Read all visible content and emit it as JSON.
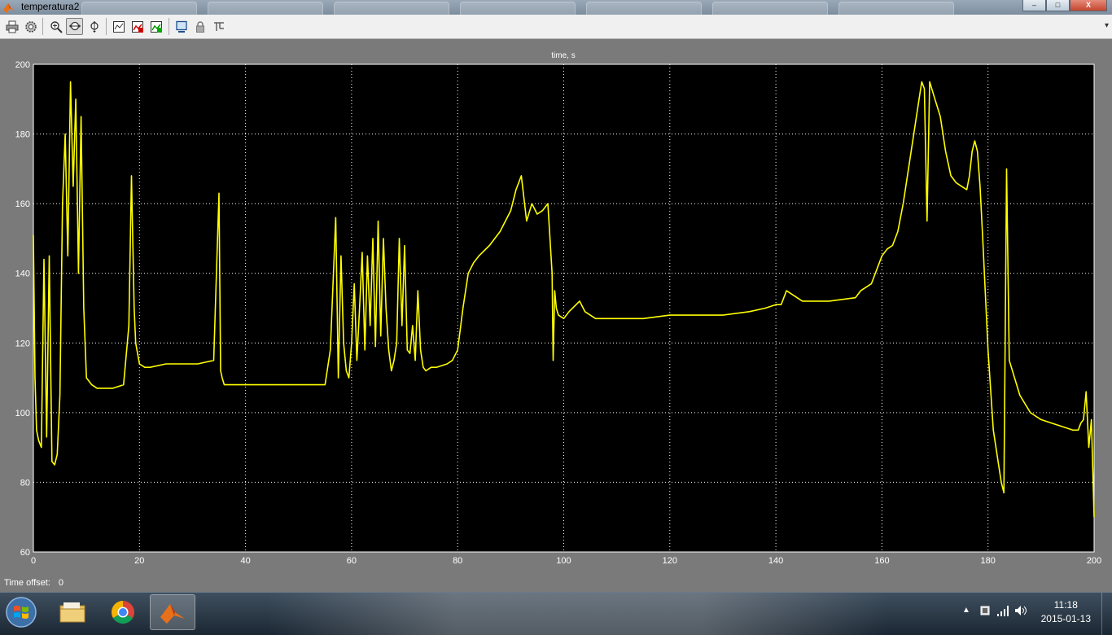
{
  "window": {
    "title": "temperatura2",
    "controls": [
      "–",
      "□",
      "X"
    ]
  },
  "toolbar": {
    "buttons": [
      {
        "name": "print-icon"
      },
      {
        "name": "parameters-icon"
      },
      {
        "name": "zoom-in-icon"
      },
      {
        "name": "zoom-x-icon",
        "pressed": true
      },
      {
        "name": "zoom-y-icon"
      },
      {
        "name": "autoscale-icon"
      },
      {
        "name": "save-axes-settings-icon"
      },
      {
        "name": "restore-axes-settings-icon"
      },
      {
        "name": "floating-scope-icon"
      },
      {
        "name": "lock-axes-icon"
      },
      {
        "name": "signal-selection-icon"
      }
    ]
  },
  "chart_data": {
    "type": "line",
    "title": "time, s",
    "xlabel": "",
    "ylabel": "",
    "xlim": [
      0,
      200
    ],
    "ylim": [
      60,
      200
    ],
    "xticks": [
      "0",
      "20",
      "40",
      "60",
      "80",
      "100",
      "120",
      "140",
      "160",
      "180",
      "200"
    ],
    "yticks": [
      "60",
      "80",
      "100",
      "120",
      "140",
      "160",
      "180",
      "200"
    ],
    "grid": true,
    "background": "#000000",
    "line_color": "#ffff00",
    "series": [
      {
        "x": [
          0,
          0.3,
          0.6,
          1,
          1.5,
          2,
          2.5,
          3,
          3.5,
          4,
          4.5,
          5,
          5.5,
          6,
          6.5,
          7,
          7.5,
          8,
          8.5,
          9,
          9.5,
          10,
          11,
          12,
          13,
          15,
          17,
          18,
          18.5,
          19,
          19.3,
          20,
          21,
          22,
          25,
          28,
          31,
          34,
          35,
          35.3,
          35.6,
          36,
          38,
          40,
          45,
          50,
          55,
          56,
          57,
          57.5,
          58,
          58.5,
          59,
          59.5,
          60,
          60.5,
          61,
          61.5,
          62,
          62.5,
          63,
          63.5,
          64,
          64.5,
          65,
          65.5,
          66,
          66.5,
          67,
          67.5,
          68,
          68.5,
          69,
          69.5,
          70,
          70.5,
          71,
          71.5,
          72,
          72.5,
          73,
          73.5,
          74,
          75,
          76,
          78,
          79,
          80,
          81,
          82,
          83,
          84,
          86,
          88,
          90,
          91,
          92,
          93,
          94,
          95,
          96,
          97,
          97.8,
          98,
          98.3,
          98.6,
          99,
          100,
          101,
          103,
          104,
          106,
          110,
          115,
          120,
          125,
          130,
          135,
          138,
          140,
          141,
          142,
          145,
          150,
          155,
          155.5,
          156,
          158,
          160,
          161,
          162,
          163,
          164,
          165,
          166,
          167,
          167.5,
          168,
          168.5,
          169,
          170,
          171,
          172,
          173,
          174,
          175,
          176,
          176.5,
          177,
          177.5,
          178,
          178.5,
          179,
          180,
          181,
          182,
          182.5,
          183,
          183.5,
          184,
          186,
          188,
          190,
          192,
          194,
          196,
          197,
          197.5,
          198,
          198.5,
          199,
          199.5,
          200
        ],
        "y": [
          151,
          110,
          95,
          92,
          90,
          144,
          93,
          145,
          86,
          85,
          88,
          105,
          160,
          180,
          145,
          195,
          165,
          190,
          140,
          185,
          130,
          110,
          108,
          107,
          107,
          107,
          108,
          125,
          168,
          130,
          120,
          114,
          113,
          113,
          114,
          114,
          114,
          115,
          163,
          112,
          110,
          108,
          108,
          108,
          108,
          108,
          108,
          118,
          156,
          110,
          145,
          120,
          112,
          110,
          120,
          137,
          115,
          130,
          146,
          118,
          145,
          125,
          150,
          119,
          155,
          122,
          150,
          130,
          118,
          112,
          115,
          120,
          150,
          125,
          148,
          118,
          117,
          125,
          115,
          135,
          118,
          113,
          112,
          113,
          113,
          114,
          115,
          118,
          130,
          140,
          143,
          145,
          148,
          152,
          158,
          164,
          168,
          155,
          160,
          157,
          158,
          160,
          140,
          115,
          135,
          130,
          128,
          127,
          129,
          132,
          129,
          127,
          127,
          127,
          128,
          128,
          128,
          129,
          130,
          131,
          131,
          135,
          132,
          132,
          133,
          134,
          135,
          137,
          145,
          147,
          148,
          152,
          160,
          170,
          180,
          190,
          195,
          193,
          155,
          195,
          190,
          185,
          175,
          168,
          166,
          165,
          164,
          168,
          175,
          178,
          175,
          165,
          150,
          118,
          95,
          85,
          80,
          77,
          170,
          115,
          105,
          100,
          98,
          97,
          96,
          95,
          95,
          97,
          98,
          106,
          90,
          98,
          70
        ]
      }
    ]
  },
  "status": {
    "label": "Time offset:",
    "value": "0"
  },
  "taskbar": {
    "items": [
      {
        "name": "file-explorer-icon"
      },
      {
        "name": "chrome-icon"
      },
      {
        "name": "matlab-icon",
        "active": true
      }
    ],
    "clock_time": "11:18",
    "clock_date": "2015-01-13"
  }
}
